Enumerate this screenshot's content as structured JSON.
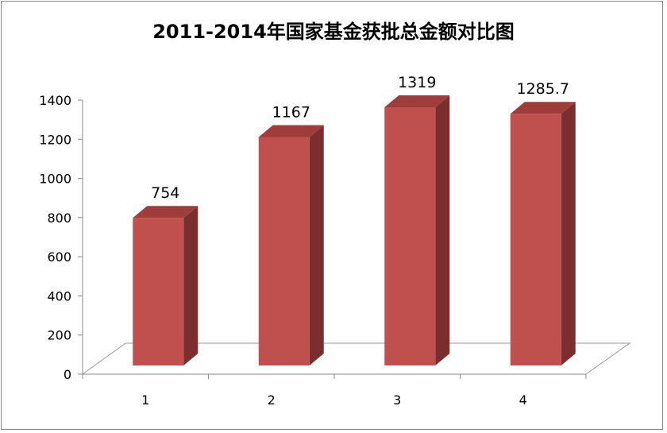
{
  "chart_data": {
    "type": "bar",
    "title": "2011-2014年国家基金获批总金额对比图",
    "categories": [
      "1",
      "2",
      "3",
      "4"
    ],
    "values": [
      754,
      1167,
      1319,
      1285.7
    ],
    "data_labels": [
      "754",
      "1167",
      "1319",
      "1285.7"
    ],
    "xlabel": "",
    "ylabel": "",
    "ylim": [
      0,
      1400
    ],
    "yticks": [
      "0",
      "200",
      "400",
      "600",
      "800",
      "1000",
      "1200",
      "1400"
    ],
    "grid": false,
    "legend": "none",
    "style": "3d-column",
    "colors": {
      "front": "#C0504D",
      "side": "#7A2F2E",
      "top": "#9E3D3A"
    }
  }
}
